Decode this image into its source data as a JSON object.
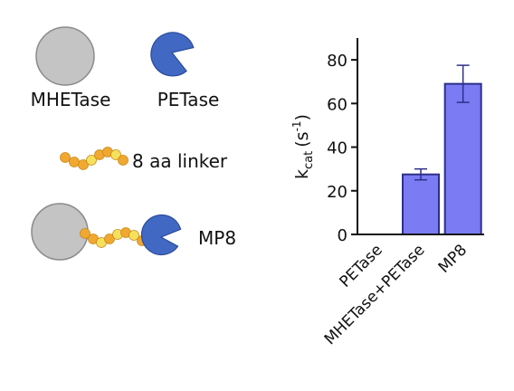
{
  "legend": {
    "mhetase_label": "MHETase",
    "petase_label": "PETase",
    "linker_label": "8 aa linker",
    "fusion_label": "MP8"
  },
  "colors": {
    "mhetase_gray": "#c4c4c4",
    "petase_blue": "#4169c4",
    "linker_orange": "#f0a830",
    "linker_yellow": "#f6e15c",
    "bar_fill": "#7b7cf4",
    "bar_stroke": "#2e2f8a",
    "axis": "#111111"
  },
  "chart_data": {
    "type": "bar",
    "ylabel_main": "k",
    "ylabel_sub": "cat",
    "ylabel_unit_open": "(s",
    "ylabel_unit_sup": "-1",
    "ylabel_unit_close": ")",
    "ylim": [
      0,
      90
    ],
    "yticks": [
      0,
      20,
      40,
      60,
      80
    ],
    "categories": [
      "PETase",
      "MHETase+PETase",
      "MP8"
    ],
    "values": [
      0,
      27.5,
      69
    ],
    "error": [
      0,
      2.5,
      8.5
    ],
    "grid": false
  }
}
